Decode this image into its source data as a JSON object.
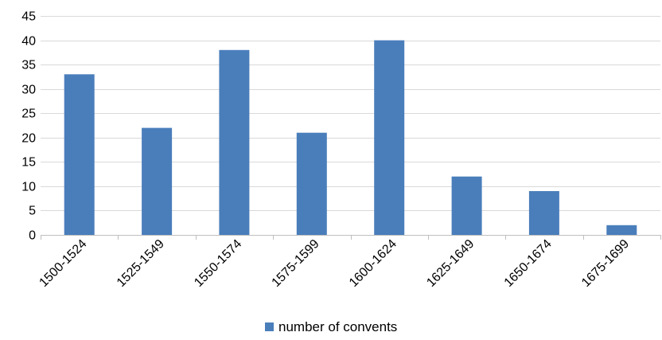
{
  "chart_data": {
    "type": "bar",
    "categories": [
      "1500-1524",
      "1525-1549",
      "1550-1574",
      "1575-1599",
      "1600-1624",
      "1625-1649",
      "1650-1674",
      "1675-1699"
    ],
    "series": [
      {
        "name": "number of convents",
        "values": [
          33,
          22,
          38,
          21,
          40,
          12,
          9,
          2
        ],
        "color": "#4a7ebb"
      }
    ],
    "title": "",
    "xlabel": "",
    "ylabel": "",
    "ylim": [
      0,
      45
    ],
    "yticks": [
      0,
      5,
      10,
      15,
      20,
      25,
      30,
      35,
      40,
      45
    ],
    "grid": true,
    "legend_position": "bottom",
    "colors": {
      "bar": "#4a7ebb",
      "grid": "#d9d9d9",
      "axis": "#bfbfbf"
    }
  }
}
